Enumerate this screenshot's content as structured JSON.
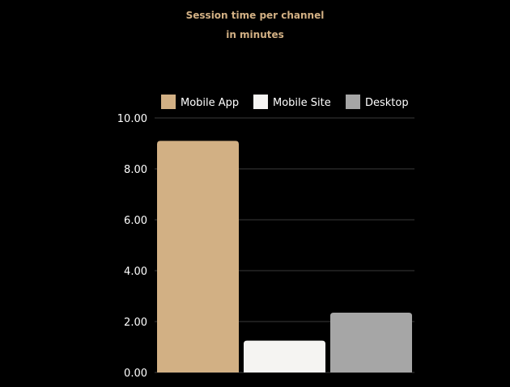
{
  "chart_data": {
    "type": "bar",
    "title": "Session time per channel",
    "subtitle": "in minutes",
    "xlabel": "",
    "ylabel": "",
    "ylim": [
      0,
      10
    ],
    "yticks": [
      "0.00",
      "2.00",
      "4.00",
      "6.00",
      "8.00",
      "10.00"
    ],
    "grid": true,
    "legend_position": "top",
    "series": [
      {
        "name": "Mobile App",
        "value": 9.1,
        "color": "#d2b084"
      },
      {
        "name": "Mobile Site",
        "value": 1.25,
        "color": "#f5f4f2"
      },
      {
        "name": "Desktop",
        "value": 2.35,
        "color": "#a6a6a6"
      }
    ]
  },
  "colors": {
    "background": "#000000",
    "title": "#d2b084",
    "text": "#ffffff",
    "grid": "#3a3a3a"
  }
}
